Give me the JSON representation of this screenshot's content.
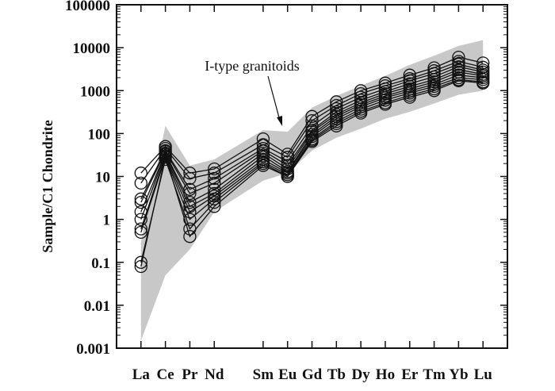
{
  "chart_data": {
    "type": "line",
    "ylabel": "Sample/C1 Chondrite",
    "xlabel": "",
    "y_scale": "log",
    "ylim": [
      0.001,
      100000
    ],
    "y_ticks": [
      {
        "value": 0.001,
        "label": "0.001"
      },
      {
        "value": 0.01,
        "label": "0.01"
      },
      {
        "value": 0.1,
        "label": "0.1"
      },
      {
        "value": 1,
        "label": "1"
      },
      {
        "value": 10,
        "label": "10"
      },
      {
        "value": 100,
        "label": "100"
      },
      {
        "value": 1000,
        "label": "1000"
      },
      {
        "value": 10000,
        "label": "10000"
      },
      {
        "value": 100000,
        "label": "100000"
      }
    ],
    "x_categories": [
      {
        "label": "La",
        "pos": 1
      },
      {
        "label": "Ce",
        "pos": 2
      },
      {
        "label": "Pr",
        "pos": 3
      },
      {
        "label": "Nd",
        "pos": 4
      },
      {
        "label": "Sm",
        "pos": 6
      },
      {
        "label": "Eu",
        "pos": 7
      },
      {
        "label": "Gd",
        "pos": 8
      },
      {
        "label": "Tb",
        "pos": 9
      },
      {
        "label": "Dy",
        "pos": 10
      },
      {
        "label": "Ho",
        "pos": 11
      },
      {
        "label": "Er",
        "pos": 12
      },
      {
        "label": "Tm",
        "pos": 13
      },
      {
        "label": "Yb",
        "pos": 14
      },
      {
        "label": "Lu",
        "pos": 15
      }
    ],
    "xlim": [
      0,
      16
    ],
    "grid": false,
    "legend": "none",
    "marker": "open-circle",
    "colors": {
      "series": "#111111",
      "field": "#c8c8c8"
    },
    "reference_field": {
      "label": "I-type granitoids",
      "upper": [
        {
          "x": 1,
          "y": 0.3
        },
        {
          "x": 2,
          "y": 150
        },
        {
          "x": 3,
          "y": 18
        },
        {
          "x": 4,
          "y": 25
        },
        {
          "x": 6,
          "y": 120
        },
        {
          "x": 7,
          "y": 110
        },
        {
          "x": 8,
          "y": 400
        },
        {
          "x": 9,
          "y": 750
        },
        {
          "x": 10,
          "y": 1300
        },
        {
          "x": 11,
          "y": 2200
        },
        {
          "x": 12,
          "y": 4000
        },
        {
          "x": 13,
          "y": 6500
        },
        {
          "x": 14,
          "y": 11000
        },
        {
          "x": 15,
          "y": 15000
        }
      ],
      "lower": [
        {
          "x": 15,
          "y": 1000
        },
        {
          "x": 14,
          "y": 800
        },
        {
          "x": 13,
          "y": 500
        },
        {
          "x": 12,
          "y": 320
        },
        {
          "x": 11,
          "y": 220
        },
        {
          "x": 10,
          "y": 130
        },
        {
          "x": 9,
          "y": 80
        },
        {
          "x": 8,
          "y": 40
        },
        {
          "x": 7,
          "y": 12
        },
        {
          "x": 6,
          "y": 8
        },
        {
          "x": 4,
          "y": 1.5
        },
        {
          "x": 3,
          "y": 0.2
        },
        {
          "x": 2,
          "y": 0.05
        },
        {
          "x": 1,
          "y": 0.0015
        }
      ]
    },
    "annotations": [
      {
        "text": "I-type granitoids",
        "x": 6,
        "y": 10000
      }
    ],
    "series": [
      {
        "values": [
          12,
          50,
          12,
          15,
          75,
          33,
          250,
          550,
          1000,
          1500,
          2300,
          3400,
          6000,
          4400
        ]
      },
      {
        "values": [
          7,
          45,
          9,
          12,
          55,
          28,
          200,
          450,
          850,
          1300,
          1900,
          2900,
          4800,
          3500
        ]
      },
      {
        "values": [
          3,
          40,
          5,
          9,
          45,
          22,
          150,
          380,
          700,
          1100,
          1700,
          2500,
          4100,
          3000
        ]
      },
      {
        "values": [
          2.5,
          38,
          4,
          7,
          40,
          18,
          120,
          320,
          600,
          950,
          1450,
          2100,
          3600,
          2700
        ]
      },
      {
        "values": [
          1.5,
          35,
          2.5,
          5,
          35,
          15,
          110,
          280,
          520,
          850,
          1250,
          1800,
          3100,
          2400
        ]
      },
      {
        "values": [
          1,
          33,
          2,
          4,
          30,
          13,
          95,
          250,
          470,
          750,
          1100,
          1600,
          2700,
          2200
        ]
      },
      {
        "values": [
          0.6,
          30,
          1.5,
          3.5,
          25,
          12,
          85,
          220,
          420,
          680,
          980,
          1400,
          2300,
          2000
        ]
      },
      {
        "values": [
          0.5,
          28,
          1,
          3,
          22,
          11,
          75,
          190,
          370,
          600,
          880,
          1250,
          2000,
          1800
        ]
      },
      {
        "values": [
          0.1,
          25,
          0.6,
          2.5,
          20,
          10,
          70,
          170,
          330,
          520,
          780,
          1100,
          1800,
          1600
        ]
      },
      {
        "values": [
          0.08,
          30,
          0.4,
          2,
          18,
          10,
          65,
          150,
          300,
          480,
          700,
          1000,
          1700,
          1500
        ]
      }
    ]
  }
}
